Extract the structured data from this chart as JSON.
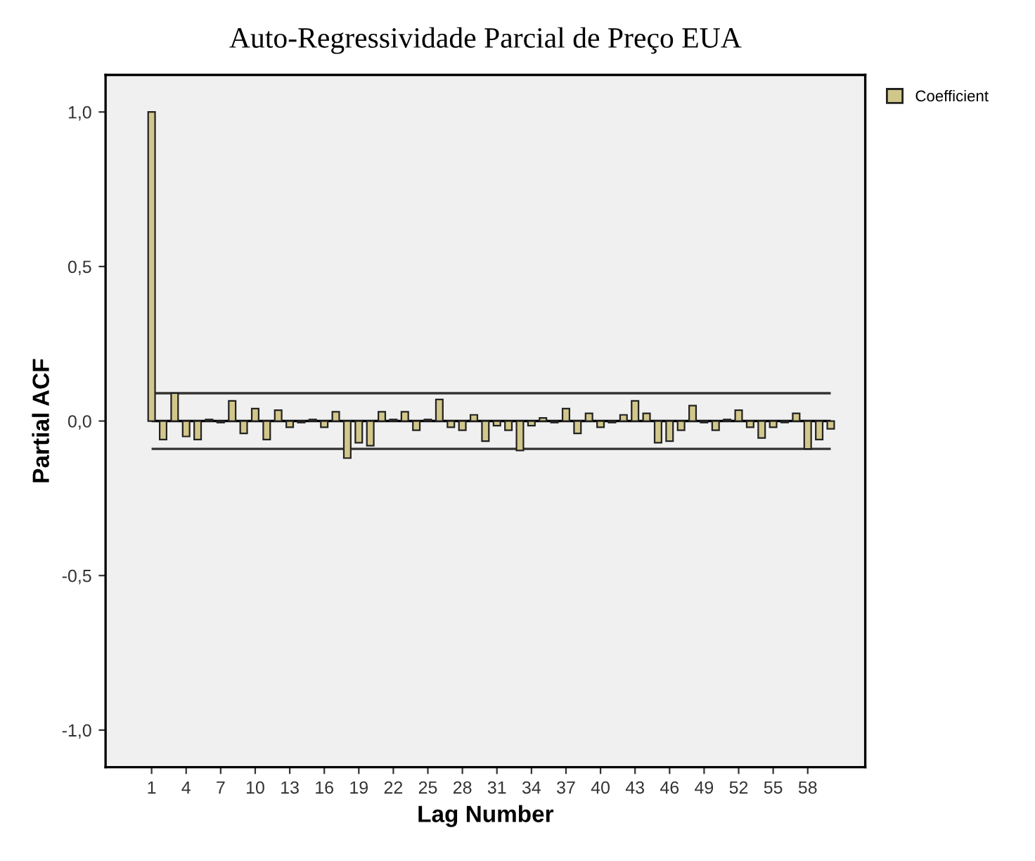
{
  "chart_data": {
    "type": "bar",
    "title": "Auto-Regressividade Parcial de Preço EUA",
    "xlabel": "Lag Number",
    "ylabel": "Partial ACF",
    "categories": [
      "1",
      null,
      null,
      "4",
      null,
      null,
      "7",
      null,
      null,
      "10",
      null,
      null,
      "13",
      null,
      null,
      "16",
      null,
      null,
      "19",
      null,
      null,
      "22",
      null,
      null,
      "25",
      null,
      null,
      "28",
      null,
      null,
      "31",
      null,
      null,
      "34",
      null,
      null,
      "37",
      null,
      null,
      "40",
      null,
      null,
      "43",
      null,
      null,
      "46",
      null,
      null,
      "49",
      null,
      null,
      "52",
      null,
      null,
      "55",
      null,
      null,
      "58",
      null,
      null
    ],
    "series": [
      {
        "name": "Coefficient",
        "color": "#d2c78a",
        "values": [
          1.0,
          -0.06,
          0.09,
          -0.05,
          -0.06,
          0.005,
          -0.005,
          0.065,
          -0.04,
          0.04,
          -0.06,
          0.035,
          -0.02,
          -0.005,
          0.005,
          -0.02,
          0.03,
          -0.12,
          -0.07,
          -0.08,
          0.03,
          0.005,
          0.03,
          -0.03,
          0.005,
          0.07,
          -0.02,
          -0.03,
          0.02,
          -0.065,
          -0.015,
          -0.03,
          -0.095,
          -0.015,
          0.01,
          -0.005,
          0.04,
          -0.04,
          0.025,
          -0.02,
          -0.005,
          0.02,
          0.065,
          0.025,
          -0.07,
          -0.065,
          -0.03,
          0.05,
          -0.005,
          -0.03,
          0.005,
          0.035,
          -0.02,
          -0.055,
          -0.02,
          -0.005,
          0.025,
          -0.09,
          -0.06,
          -0.025
        ]
      }
    ],
    "ylim": [
      -1.12,
      1.12
    ],
    "yticks": [
      {
        "value": -1.0,
        "label": "-1,0"
      },
      {
        "value": -0.5,
        "label": "-0,5"
      },
      {
        "value": 0.0,
        "label": "0,0"
      },
      {
        "value": 0.5,
        "label": "0,5"
      },
      {
        "value": 1.0,
        "label": "1,0"
      }
    ],
    "ref_lines": [
      {
        "axis": "y",
        "value": 0.09,
        "color": "#333333"
      },
      {
        "axis": "y",
        "value": -0.09,
        "color": "#333333"
      },
      {
        "axis": "y",
        "value": 0,
        "color": "#000000"
      }
    ],
    "legend": "top right",
    "grid": false
  }
}
